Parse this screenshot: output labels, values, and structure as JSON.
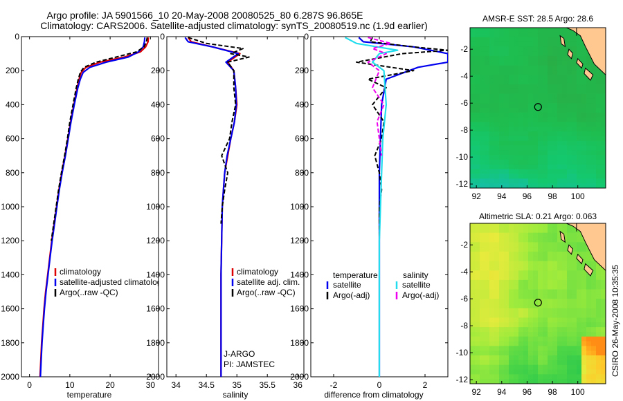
{
  "title": {
    "line1": "Argo profile: JA 5901566_10 20-May-2008 20080525_80 6.287S 96.865E",
    "line2": "Climatology: CARS2006. Satellite-adjusted climatology: synTS_20080519.nc (1.9d earlier)"
  },
  "credit": "CSIRO 26-May-2008 10:35:35",
  "colors": {
    "clim": "#dd0000",
    "sat": "#0000ee",
    "argo": "#000000",
    "sat_sal": "#22ddee",
    "argo_sal": "#ee00ee",
    "land": "#ffc890"
  },
  "chart_data": [
    {
      "type": "line",
      "xlabel": "temperature",
      "ylabel": "depth",
      "xlim": [
        -2,
        32
      ],
      "ylim": [
        2000,
        0
      ],
      "xticks": [
        0,
        10,
        20,
        30
      ],
      "yticks": [
        0,
        200,
        400,
        600,
        800,
        1000,
        1200,
        1400,
        1600,
        1800,
        2000
      ],
      "legend": [
        "climatology",
        "satellite-adjusted climatology",
        "Argo(..raw -QC)"
      ],
      "series": [
        {
          "name": "climatology",
          "color": "#dd0000",
          "style": "solid",
          "x": [
            29.5,
            29.4,
            28.8,
            27.5,
            23.5,
            17.5,
            14.0,
            12.8,
            12.3,
            11.8,
            11.0,
            10.2,
            9.5,
            8.8,
            8.0,
            7.3,
            6.7,
            6.1,
            5.5,
            5.0,
            4.5,
            4.0,
            3.6,
            3.3,
            3.0,
            2.8,
            2.6
          ],
          "y": [
            5,
            30,
            60,
            90,
            120,
            150,
            180,
            210,
            250,
            300,
            400,
            500,
            600,
            700,
            800,
            900,
            1000,
            1100,
            1200,
            1300,
            1400,
            1500,
            1600,
            1700,
            1800,
            1900,
            2000
          ]
        },
        {
          "name": "satellite-adjusted climatology",
          "color": "#0000ee",
          "style": "solid",
          "x": [
            28.6,
            28.5,
            28.2,
            27.0,
            24.5,
            19.0,
            15.0,
            13.3,
            12.6,
            12.0,
            11.1,
            10.3,
            9.6,
            8.9,
            8.1,
            7.4,
            6.8,
            6.2,
            5.6,
            5.1,
            4.6,
            4.1,
            3.7,
            3.4,
            3.1,
            2.9,
            2.7
          ],
          "y": [
            5,
            30,
            60,
            90,
            120,
            150,
            180,
            210,
            250,
            300,
            400,
            500,
            600,
            700,
            800,
            900,
            1000,
            1100,
            1200,
            1300,
            1400,
            1500,
            1600,
            1700,
            1800,
            1900,
            2000
          ]
        },
        {
          "name": "Argo(..raw -QC)",
          "color": "#000000",
          "style": "dashed",
          "x": [
            29.2,
            29.0,
            28.4,
            26.5,
            21.5,
            16.5,
            13.5,
            12.6,
            12.1,
            11.6,
            10.8,
            10.0,
            9.4,
            8.7,
            7.9,
            7.2,
            6.6,
            6.0,
            5.4
          ],
          "y": [
            5,
            30,
            60,
            90,
            120,
            150,
            180,
            210,
            250,
            300,
            400,
            500,
            600,
            700,
            800,
            900,
            1000,
            1100,
            1200
          ]
        }
      ]
    },
    {
      "type": "line",
      "xlabel": "salinity",
      "ylabel": "depth",
      "xlim": [
        33.85,
        36.1
      ],
      "ylim": [
        2000,
        0
      ],
      "xticks": [
        34,
        34.5,
        35,
        35.5,
        36
      ],
      "yticks": [
        0,
        200,
        400,
        600,
        800,
        1000,
        1200,
        1400,
        1600,
        1800,
        2000
      ],
      "legend": [
        "climatology",
        "satellite adj. clim.",
        "Argo(..raw -QC)"
      ],
      "annotations": [
        "J-ARGO",
        "PI: JAMSTEC"
      ],
      "series": [
        {
          "name": "climatology",
          "color": "#dd0000",
          "style": "solid",
          "x": [
            34.2,
            34.25,
            34.6,
            35.05,
            34.85,
            34.95,
            34.98,
            35.0,
            34.96,
            34.9,
            34.85,
            34.8,
            34.78,
            34.76,
            34.75,
            34.74,
            34.74,
            34.74,
            34.74,
            34.74
          ],
          "y": [
            5,
            30,
            60,
            100,
            150,
            200,
            300,
            400,
            500,
            600,
            700,
            800,
            900,
            1000,
            1200,
            1400,
            1600,
            1800,
            1900,
            2000
          ]
        },
        {
          "name": "satellite adj. clim.",
          "color": "#0000ee",
          "style": "solid",
          "x": [
            34.15,
            34.2,
            34.6,
            35.02,
            34.82,
            34.95,
            34.98,
            34.99,
            34.96,
            34.9,
            34.84,
            34.8,
            34.78,
            34.76,
            34.75,
            34.74,
            34.74,
            34.74,
            34.74,
            34.74
          ],
          "y": [
            5,
            30,
            60,
            100,
            150,
            200,
            300,
            400,
            500,
            600,
            700,
            800,
            900,
            1000,
            1200,
            1400,
            1600,
            1800,
            1900,
            2000
          ]
        },
        {
          "name": "Argo(..raw -QC)",
          "color": "#000000",
          "style": "dashed",
          "x": [
            34.2,
            34.5,
            35.1,
            34.9,
            35.2,
            34.85,
            34.95,
            34.95,
            34.98,
            34.92,
            34.88,
            34.75,
            34.85,
            34.8,
            34.76,
            34.74
          ],
          "y": [
            5,
            40,
            70,
            100,
            120,
            150,
            200,
            300,
            400,
            500,
            600,
            700,
            800,
            900,
            1000,
            1100
          ]
        }
      ]
    },
    {
      "type": "line",
      "xlabel": "difference from climatology",
      "ylabel": "depth",
      "xlim": [
        -3,
        3
      ],
      "ylim": [
        2000,
        0
      ],
      "xticks": [
        -2,
        0,
        2
      ],
      "yticks": [
        0,
        200,
        400,
        600,
        800,
        1000,
        1200,
        1400,
        1600,
        1800,
        2000
      ],
      "legend_headers": [
        "temperature",
        "salinity"
      ],
      "legend": [
        "satellite",
        "Argo(-adj)",
        "satellite",
        "Argo(-adj)"
      ],
      "series": [
        {
          "name": "temperature satellite",
          "color": "#0000ee",
          "style": "solid",
          "x": [
            -0.9,
            -0.7,
            1.5,
            3.0,
            3.0,
            1.7,
            0.3,
            0.1,
            0.05,
            0.0,
            0.0,
            0.0,
            0.0,
            0.0,
            0.0
          ],
          "y": [
            5,
            30,
            60,
            100,
            150,
            180,
            250,
            400,
            600,
            800,
            1000,
            1200,
            1500,
            1800,
            2000
          ]
        },
        {
          "name": "temperature Argo(-adj)",
          "color": "#000000",
          "style": "dashed",
          "x": [
            -0.3,
            -0.4,
            1.5,
            3.0,
            1.0,
            -1.0,
            1.5,
            -0.5,
            0.3,
            -0.3,
            0.2,
            0.1,
            -0.2,
            0.0,
            0.1,
            0.0,
            0.0
          ],
          "y": [
            5,
            30,
            60,
            80,
            100,
            150,
            200,
            250,
            300,
            400,
            500,
            600,
            700,
            800,
            900,
            1000,
            1200
          ]
        },
        {
          "name": "salinity satellite",
          "color": "#22ddee",
          "style": "solid",
          "x": [
            -1.5,
            -1.0,
            0.8,
            0.0,
            -0.3,
            0.2,
            0.3,
            0.15,
            0.1,
            0.05,
            0.0,
            0.0,
            0.0
          ],
          "y": [
            5,
            40,
            80,
            100,
            150,
            200,
            400,
            600,
            800,
            1000,
            1200,
            1500,
            2000
          ]
        },
        {
          "name": "salinity Argo(-adj)",
          "color": "#ee00ee",
          "style": "dashed",
          "x": [
            -0.5,
            0.5,
            -0.3,
            0.3,
            -0.5,
            0.0,
            -0.3,
            0.2,
            -0.1,
            0.0,
            0.1
          ],
          "y": [
            5,
            40,
            70,
            100,
            150,
            200,
            300,
            400,
            500,
            600,
            700
          ]
        }
      ]
    },
    {
      "type": "heatmap",
      "title": "AMSR-E SST: 28.5 Argo: 28.6",
      "xlim": [
        91.5,
        102.2
      ],
      "ylim": [
        -12.3,
        -0.4
      ],
      "xticks": [
        92,
        94,
        96,
        98,
        100
      ],
      "yticks": [
        -2,
        -4,
        -6,
        -8,
        -10,
        -12
      ],
      "marker": {
        "lon": 96.865,
        "lat": -6.287
      }
    },
    {
      "type": "heatmap",
      "title": "Altimetric SLA: 0.21 Argo: 0.063",
      "xlim": [
        91.5,
        102.2
      ],
      "ylim": [
        -12.3,
        -0.4
      ],
      "xticks": [
        92,
        94,
        96,
        98,
        100
      ],
      "yticks": [
        -2,
        -4,
        -6,
        -8,
        -10,
        -12
      ],
      "marker": {
        "lon": 96.865,
        "lat": -6.287
      }
    }
  ]
}
